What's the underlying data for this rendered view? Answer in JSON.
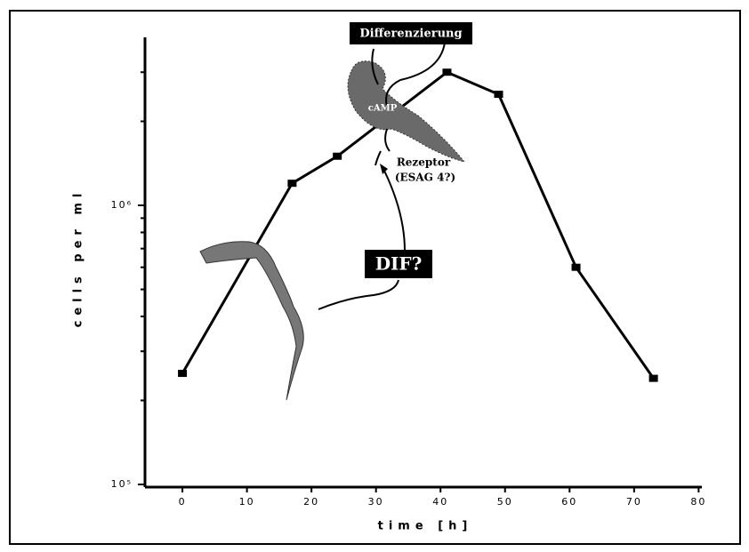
{
  "chart_data": {
    "type": "line",
    "xlabel": "time [h]",
    "ylabel": "cells per ml",
    "x": [
      0,
      17,
      24,
      41,
      49,
      61,
      73
    ],
    "values": [
      250000,
      1200000,
      1500000,
      3000000,
      2500000,
      600000,
      240000
    ],
    "color": "#000000",
    "xlim": [
      -5.8,
      80.5
    ],
    "xticks": [
      0,
      10,
      20,
      30,
      40,
      50,
      60,
      70,
      80
    ],
    "ylim": [
      100000,
      4000000
    ],
    "yscale": "log",
    "yticks": [
      {
        "value": 100000,
        "label": "10⁵"
      },
      {
        "value": 1000000,
        "label": "10⁶"
      }
    ],
    "yminorticks": [
      200000,
      300000,
      400000,
      500000,
      600000,
      700000,
      800000,
      900000,
      2000000,
      3000000
    ],
    "annotations": [
      "Differenzierung",
      "cAMP",
      "Rezeptor",
      "(ESAG 4?)",
      "DIF?"
    ]
  }
}
